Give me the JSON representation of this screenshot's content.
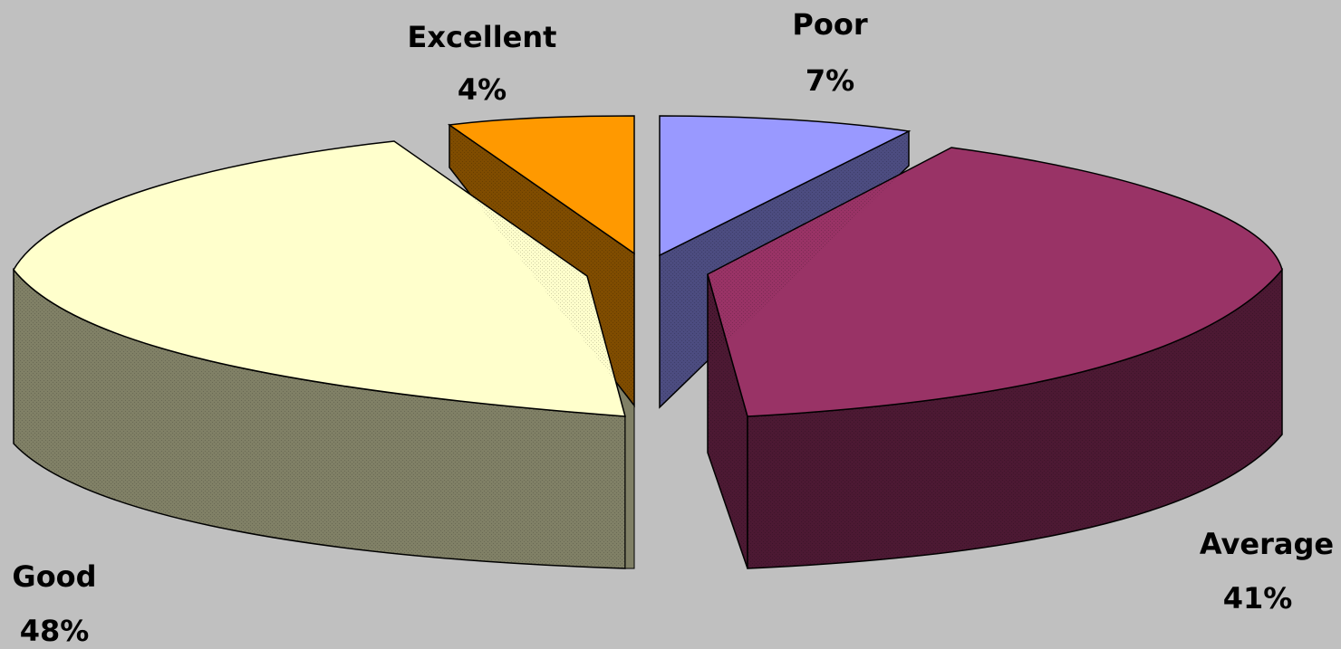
{
  "chart_data": {
    "type": "pie",
    "title": "",
    "slices": [
      {
        "label": "Excellent",
        "value": 4,
        "value_text": "4%",
        "color": "#ff9900",
        "side_color": "#7f4c00"
      },
      {
        "label": "Poor",
        "value": 7,
        "value_text": "7%",
        "color": "#9999ff",
        "side_color": "#4c4c80"
      },
      {
        "label": "Average",
        "value": 41,
        "value_text": "41%",
        "color": "#993366",
        "side_color": "#4c1933"
      },
      {
        "label": "Good",
        "value": 48,
        "value_text": "48%",
        "color": "#ffffcc",
        "side_color": "#808066"
      }
    ],
    "style": "3d-exploded",
    "background": "#c0c0c0",
    "legend": "none"
  }
}
